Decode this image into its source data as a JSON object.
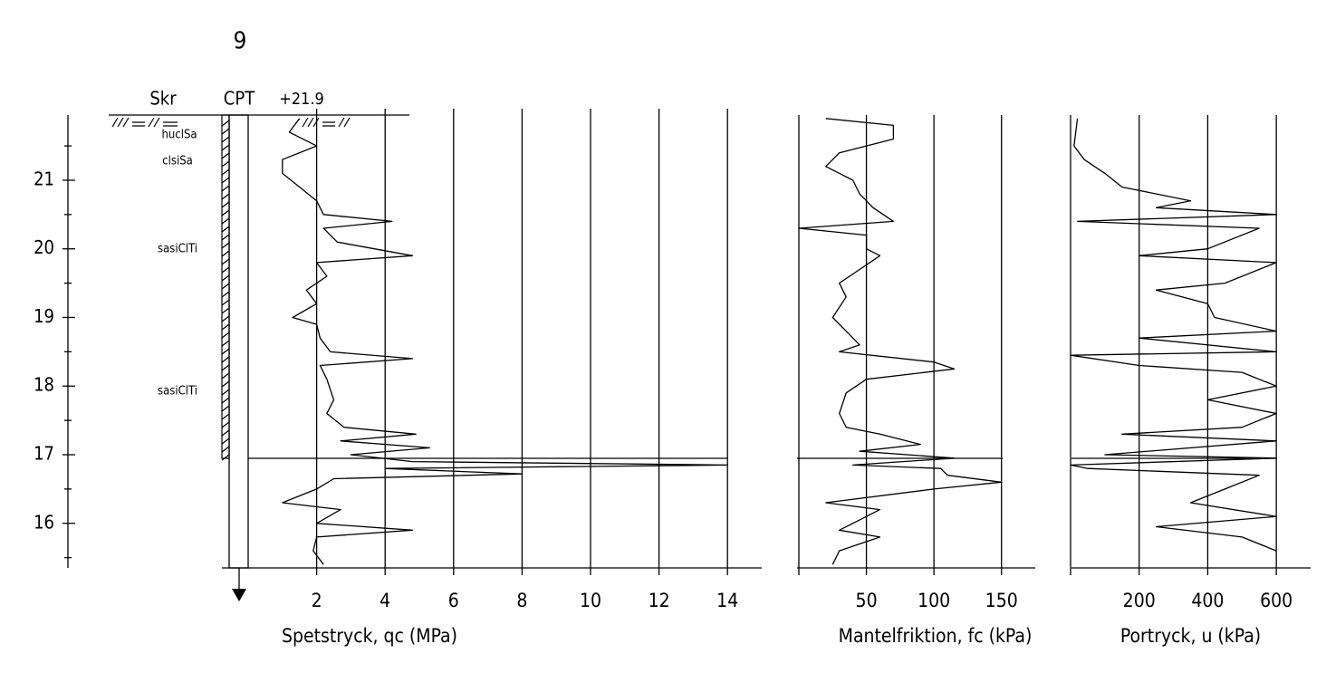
{
  "header": {
    "number": "9",
    "col_skr": "Skr",
    "col_cpt": "CPT",
    "level": "+21.9"
  },
  "soil_layers": [
    "huclSa",
    "clsiSa",
    "sasiClTi",
    "sasiClTi"
  ],
  "chart_data": [
    {
      "type": "line",
      "x_label": "Spetstryck, qc (MPa)",
      "color": "#000000",
      "xlim": [
        0,
        15
      ],
      "xticks": [
        2,
        4,
        6,
        8,
        10,
        12,
        14
      ],
      "ylim": [
        15.35,
        21.95
      ],
      "yticks": [
        16,
        17,
        18,
        19,
        20,
        21
      ],
      "yminorticks": [
        15.5,
        16.5,
        17.5,
        18.5,
        19.5,
        20.5,
        21.5
      ],
      "depth": [
        21.9,
        21.7,
        21.5,
        21.3,
        21.1,
        20.9,
        20.7,
        20.5,
        20.4,
        20.3,
        20.1,
        19.9,
        19.8,
        19.6,
        19.4,
        19.2,
        19.0,
        18.9,
        18.7,
        18.5,
        18.4,
        18.3,
        18.1,
        17.8,
        17.6,
        17.4,
        17.3,
        17.2,
        17.1,
        17.0,
        16.9,
        16.85,
        16.8,
        16.72,
        16.65,
        16.5,
        16.3,
        16.2,
        16.0,
        15.9,
        15.8,
        15.6,
        15.4
      ],
      "values": [
        1.5,
        1.2,
        2.0,
        1.0,
        1.0,
        1.5,
        2.0,
        2.2,
        4.2,
        2.2,
        2.6,
        4.8,
        2.0,
        2.3,
        1.7,
        2.0,
        1.3,
        2.0,
        2.1,
        2.4,
        4.8,
        2.1,
        2.3,
        2.5,
        2.3,
        2.8,
        4.9,
        2.7,
        5.3,
        3.0,
        4.8,
        14.0,
        4.0,
        8.0,
        2.5,
        2.0,
        1.0,
        2.7,
        2.0,
        4.8,
        2.0,
        1.9,
        2.2
      ]
    },
    {
      "type": "line",
      "x_label": "Mantelfriktion, fc (kPa)",
      "color": "#000000",
      "xlim": [
        0,
        175
      ],
      "xticks": [
        50,
        100,
        150
      ],
      "ylim": [
        15.35,
        21.95
      ],
      "depth": [
        21.9,
        21.8,
        21.6,
        21.4,
        21.2,
        21.0,
        20.8,
        20.6,
        20.4,
        20.3,
        20.2,
        20.0,
        19.9,
        19.7,
        19.5,
        19.3,
        19.0,
        18.8,
        18.6,
        18.5,
        18.35,
        18.25,
        18.1,
        17.9,
        17.6,
        17.4,
        17.3,
        17.15,
        17.05,
        16.95,
        16.85,
        16.8,
        16.7,
        16.6,
        16.5,
        16.3,
        16.2,
        16.0,
        15.9,
        15.8,
        15.6,
        15.4
      ],
      "values": [
        20,
        70,
        70,
        30,
        20,
        40,
        45,
        55,
        70,
        0,
        50,
        50,
        60,
        45,
        30,
        35,
        25,
        35,
        45,
        30,
        100,
        115,
        50,
        35,
        30,
        35,
        60,
        90,
        45,
        115,
        40,
        105,
        110,
        150,
        100,
        20,
        60,
        40,
        30,
        60,
        30,
        25
      ]
    },
    {
      "type": "line",
      "x_label": "Portryck, u (kPa)",
      "color": "#000000",
      "xlim": [
        0,
        700
      ],
      "xticks": [
        200,
        400,
        600
      ],
      "ylim": [
        15.35,
        21.95
      ],
      "depth": [
        21.9,
        21.7,
        21.5,
        21.3,
        21.1,
        20.9,
        20.7,
        20.6,
        20.5,
        20.4,
        20.3,
        20.0,
        19.9,
        19.8,
        19.5,
        19.4,
        19.2,
        19.0,
        18.8,
        18.7,
        18.5,
        18.45,
        18.3,
        18.2,
        18.0,
        17.8,
        17.6,
        17.4,
        17.3,
        17.2,
        17.0,
        16.95,
        16.85,
        16.8,
        16.7,
        16.5,
        16.3,
        16.1,
        15.95,
        15.8,
        15.6
      ],
      "values": [
        20,
        15,
        10,
        40,
        100,
        150,
        350,
        250,
        600,
        20,
        550,
        400,
        200,
        600,
        450,
        250,
        400,
        420,
        600,
        200,
        600,
        0,
        200,
        500,
        600,
        400,
        600,
        500,
        150,
        600,
        100,
        600,
        0,
        50,
        550,
        450,
        350,
        600,
        250,
        500,
        600
      ]
    }
  ]
}
